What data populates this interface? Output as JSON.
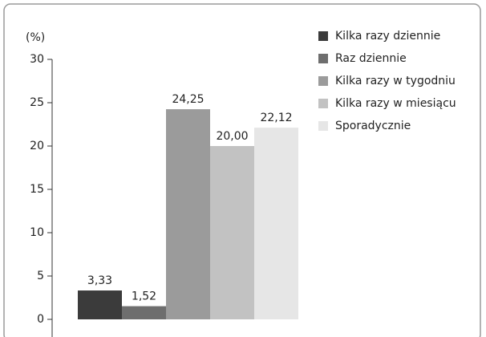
{
  "chart_data": {
    "type": "bar",
    "y_label": "(%)",
    "series": [
      {
        "name": "Kilka razy dziennie",
        "color": "#3b3b3b",
        "values": [
          3.33
        ],
        "value_labels": [
          "3,33"
        ]
      },
      {
        "name": "Raz dziennie",
        "color": "#6e6e6e",
        "values": [
          1.52
        ],
        "value_labels": [
          "1,52"
        ]
      },
      {
        "name": "Kilka razy w tygodniu",
        "color": "#9b9b9b",
        "values": [
          24.25
        ],
        "value_labels": [
          "24,25"
        ]
      },
      {
        "name": "Kilka razy w miesiącu",
        "color": "#c2c2c2",
        "values": [
          20.0
        ],
        "value_labels": [
          "20,00"
        ]
      },
      {
        "name": "Sporadycznie",
        "color": "#e6e6e6",
        "values": [
          22.12
        ],
        "value_labels": [
          "22,12"
        ]
      }
    ],
    "ylim": [
      0,
      30
    ],
    "yticks": [
      0,
      5,
      10,
      15,
      20,
      25,
      30
    ],
    "legend": "right"
  }
}
